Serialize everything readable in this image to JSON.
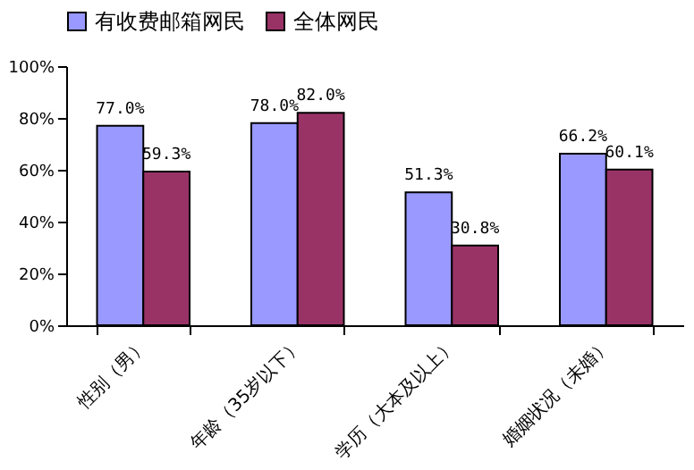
{
  "chart_data": {
    "type": "bar",
    "categories": [
      "性别（男）",
      "年龄（35岁以下）",
      "学历（大本及以上）",
      "婚姻状况（未婚）"
    ],
    "series": [
      {
        "name": "有收费邮箱网民",
        "color": "#9999ff",
        "values": [
          77.0,
          78.0,
          51.3,
          66.2
        ],
        "value_labels": [
          "77.0%",
          "78.0%",
          "51.3%",
          "66.2%"
        ]
      },
      {
        "name": "全体网民",
        "color": "#993366",
        "values": [
          59.3,
          82.0,
          30.8,
          60.1
        ],
        "value_labels": [
          "59.3%",
          "82.0%",
          "30.8%",
          "60.1%"
        ]
      }
    ],
    "ylim": [
      0,
      100
    ],
    "yticks": [
      {
        "value": 0,
        "label": "0%"
      },
      {
        "value": 20,
        "label": "20%"
      },
      {
        "value": 40,
        "label": "40%"
      },
      {
        "value": 60,
        "label": "60%"
      },
      {
        "value": 80,
        "label": "80%"
      },
      {
        "value": 100,
        "label": "100%"
      }
    ],
    "legend": "top"
  }
}
